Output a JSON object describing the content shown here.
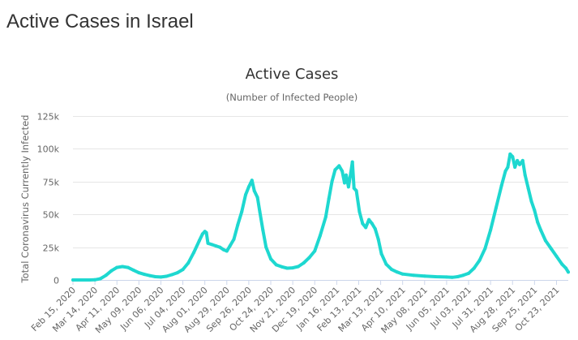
{
  "page": {
    "heading": "Active Cases in Israel"
  },
  "colors": {
    "series": "#1ed8d0",
    "grid": "#e6e6e6",
    "axis": "#ccd6eb",
    "text": "#666666",
    "title": "#333333"
  },
  "chart_data": {
    "type": "line",
    "title": "Active Cases",
    "subtitle": "(Number of Infected People)",
    "ylabel": "Total Coronavirus Currently Infected",
    "xlabel": "",
    "ylim": [
      0,
      125000
    ],
    "yticks": [
      0,
      25000,
      50000,
      75000,
      100000,
      125000
    ],
    "ytick_labels": [
      "0",
      "25k",
      "50k",
      "75k",
      "100k",
      "125k"
    ],
    "xtick_labels": [
      "Feb 15, 2020",
      "Mar 14, 2020",
      "Apr 11, 2020",
      "May 09, 2020",
      "Jun 06, 2020",
      "Jul 04, 2020",
      "Aug 01, 2020",
      "Aug 29, 2020",
      "Sep 26, 2020",
      "Oct 24, 2020",
      "Nov 21, 2020",
      "Dec 19, 2020",
      "Jan 16, 2021",
      "Feb 13, 2021",
      "Mar 13, 2021",
      "Apr 10, 2021",
      "May 08, 2021",
      "Jun 05, 2021",
      "Jul 03, 2021",
      "Jul 31, 2021",
      "Aug 28, 2021",
      "Sep 25, 2021",
      "Oct 23, 2021"
    ],
    "grid": true,
    "legend": "none",
    "x_start": "2020-02-15",
    "x_end": "2021-11-07",
    "series": [
      {
        "name": "",
        "color": "#1ed8d0",
        "points": [
          {
            "x": "2020-02-15",
            "y": 0
          },
          {
            "x": "2020-03-07",
            "y": 0
          },
          {
            "x": "2020-03-14",
            "y": 100
          },
          {
            "x": "2020-03-21",
            "y": 1000
          },
          {
            "x": "2020-03-28",
            "y": 3500
          },
          {
            "x": "2020-04-04",
            "y": 7000
          },
          {
            "x": "2020-04-11",
            "y": 9500
          },
          {
            "x": "2020-04-18",
            "y": 10200
          },
          {
            "x": "2020-04-25",
            "y": 9500
          },
          {
            "x": "2020-05-02",
            "y": 7500
          },
          {
            "x": "2020-05-09",
            "y": 5500
          },
          {
            "x": "2020-05-16",
            "y": 4300
          },
          {
            "x": "2020-05-23",
            "y": 3300
          },
          {
            "x": "2020-05-30",
            "y": 2500
          },
          {
            "x": "2020-06-06",
            "y": 2200
          },
          {
            "x": "2020-06-13",
            "y": 2800
          },
          {
            "x": "2020-06-20",
            "y": 4000
          },
          {
            "x": "2020-06-27",
            "y": 5500
          },
          {
            "x": "2020-07-04",
            "y": 8000
          },
          {
            "x": "2020-07-11",
            "y": 13000
          },
          {
            "x": "2020-07-18",
            "y": 21000
          },
          {
            "x": "2020-07-25",
            "y": 30000
          },
          {
            "x": "2020-07-29",
            "y": 35000
          },
          {
            "x": "2020-08-01",
            "y": 37000
          },
          {
            "x": "2020-08-03",
            "y": 36000
          },
          {
            "x": "2020-08-05",
            "y": 28000
          },
          {
            "x": "2020-08-10",
            "y": 27000
          },
          {
            "x": "2020-08-15",
            "y": 26000
          },
          {
            "x": "2020-08-20",
            "y": 25000
          },
          {
            "x": "2020-08-25",
            "y": 23000
          },
          {
            "x": "2020-08-29",
            "y": 22000
          },
          {
            "x": "2020-09-02",
            "y": 26000
          },
          {
            "x": "2020-09-07",
            "y": 31000
          },
          {
            "x": "2020-09-12",
            "y": 42000
          },
          {
            "x": "2020-09-17",
            "y": 52000
          },
          {
            "x": "2020-09-22",
            "y": 65000
          },
          {
            "x": "2020-09-26",
            "y": 71000
          },
          {
            "x": "2020-09-30",
            "y": 76000
          },
          {
            "x": "2020-10-03",
            "y": 68000
          },
          {
            "x": "2020-10-07",
            "y": 63000
          },
          {
            "x": "2020-10-10",
            "y": 52000
          },
          {
            "x": "2020-10-14",
            "y": 38000
          },
          {
            "x": "2020-10-18",
            "y": 25000
          },
          {
            "x": "2020-10-24",
            "y": 16000
          },
          {
            "x": "2020-10-31",
            "y": 11500
          },
          {
            "x": "2020-11-07",
            "y": 10000
          },
          {
            "x": "2020-11-14",
            "y": 9000
          },
          {
            "x": "2020-11-21",
            "y": 9200
          },
          {
            "x": "2020-11-28",
            "y": 10200
          },
          {
            "x": "2020-12-05",
            "y": 13000
          },
          {
            "x": "2020-12-12",
            "y": 17000
          },
          {
            "x": "2020-12-19",
            "y": 22000
          },
          {
            "x": "2020-12-26",
            "y": 34000
          },
          {
            "x": "2021-01-02",
            "y": 48000
          },
          {
            "x": "2021-01-06",
            "y": 62000
          },
          {
            "x": "2021-01-10",
            "y": 75000
          },
          {
            "x": "2021-01-14",
            "y": 84000
          },
          {
            "x": "2021-01-19",
            "y": 87000
          },
          {
            "x": "2021-01-23",
            "y": 83000
          },
          {
            "x": "2021-01-26",
            "y": 74000
          },
          {
            "x": "2021-01-28",
            "y": 80000
          },
          {
            "x": "2021-01-31",
            "y": 71000
          },
          {
            "x": "2021-02-03",
            "y": 82000
          },
          {
            "x": "2021-02-05",
            "y": 90000
          },
          {
            "x": "2021-02-07",
            "y": 70000
          },
          {
            "x": "2021-02-10",
            "y": 68000
          },
          {
            "x": "2021-02-14",
            "y": 52000
          },
          {
            "x": "2021-02-18",
            "y": 43000
          },
          {
            "x": "2021-02-22",
            "y": 40000
          },
          {
            "x": "2021-02-26",
            "y": 46000
          },
          {
            "x": "2021-03-02",
            "y": 43000
          },
          {
            "x": "2021-03-06",
            "y": 39000
          },
          {
            "x": "2021-03-10",
            "y": 31000
          },
          {
            "x": "2021-03-14",
            "y": 20000
          },
          {
            "x": "2021-03-20",
            "y": 12000
          },
          {
            "x": "2021-03-27",
            "y": 8000
          },
          {
            "x": "2021-04-03",
            "y": 6000
          },
          {
            "x": "2021-04-10",
            "y": 4500
          },
          {
            "x": "2021-04-24",
            "y": 3500
          },
          {
            "x": "2021-05-08",
            "y": 3000
          },
          {
            "x": "2021-05-22",
            "y": 2500
          },
          {
            "x": "2021-06-05",
            "y": 2200
          },
          {
            "x": "2021-06-12",
            "y": 2000
          },
          {
            "x": "2021-06-19",
            "y": 2500
          },
          {
            "x": "2021-06-26",
            "y": 3500
          },
          {
            "x": "2021-07-03",
            "y": 5000
          },
          {
            "x": "2021-07-10",
            "y": 9000
          },
          {
            "x": "2021-07-17",
            "y": 15000
          },
          {
            "x": "2021-07-24",
            "y": 24000
          },
          {
            "x": "2021-07-31",
            "y": 38000
          },
          {
            "x": "2021-08-07",
            "y": 55000
          },
          {
            "x": "2021-08-14",
            "y": 72000
          },
          {
            "x": "2021-08-19",
            "y": 83000
          },
          {
            "x": "2021-08-22",
            "y": 86000
          },
          {
            "x": "2021-08-25",
            "y": 96000
          },
          {
            "x": "2021-08-28",
            "y": 94000
          },
          {
            "x": "2021-08-31",
            "y": 86000
          },
          {
            "x": "2021-09-03",
            "y": 91000
          },
          {
            "x": "2021-09-06",
            "y": 88000
          },
          {
            "x": "2021-09-10",
            "y": 91000
          },
          {
            "x": "2021-09-13",
            "y": 80000
          },
          {
            "x": "2021-09-17",
            "y": 70000
          },
          {
            "x": "2021-09-21",
            "y": 60000
          },
          {
            "x": "2021-09-25",
            "y": 53000
          },
          {
            "x": "2021-09-29",
            "y": 44000
          },
          {
            "x": "2021-10-03",
            "y": 38000
          },
          {
            "x": "2021-10-09",
            "y": 30000
          },
          {
            "x": "2021-10-16",
            "y": 24000
          },
          {
            "x": "2021-10-23",
            "y": 18000
          },
          {
            "x": "2021-10-30",
            "y": 12000
          },
          {
            "x": "2021-11-04",
            "y": 9000
          },
          {
            "x": "2021-11-07",
            "y": 6000
          }
        ]
      }
    ]
  }
}
